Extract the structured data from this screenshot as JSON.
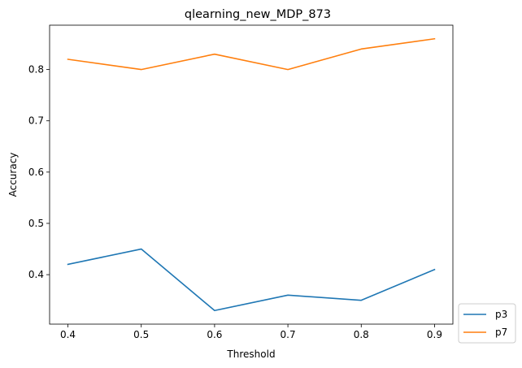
{
  "chart_data": {
    "type": "line",
    "title": "qlearning_new_MDP_873",
    "xlabel": "Threshold",
    "ylabel": "Accuracy",
    "x": [
      0.4,
      0.5,
      0.6,
      0.7,
      0.8,
      0.9
    ],
    "xlim": [
      0.375,
      0.925
    ],
    "ylim": [
      0.3035,
      0.8865
    ],
    "xticks": [
      "0.4",
      "0.5",
      "0.6",
      "0.7",
      "0.8",
      "0.9"
    ],
    "yticks": [
      "0.4",
      "0.5",
      "0.6",
      "0.7",
      "0.8"
    ],
    "grid": false,
    "legend_position": "outside-lower-right",
    "series": [
      {
        "name": "p3",
        "color": "#1f77b4",
        "values": [
          0.42,
          0.45,
          0.33,
          0.36,
          0.35,
          0.41
        ]
      },
      {
        "name": "p7",
        "color": "#ff7f0e",
        "values": [
          0.82,
          0.8,
          0.83,
          0.8,
          0.84,
          0.86
        ]
      }
    ]
  }
}
